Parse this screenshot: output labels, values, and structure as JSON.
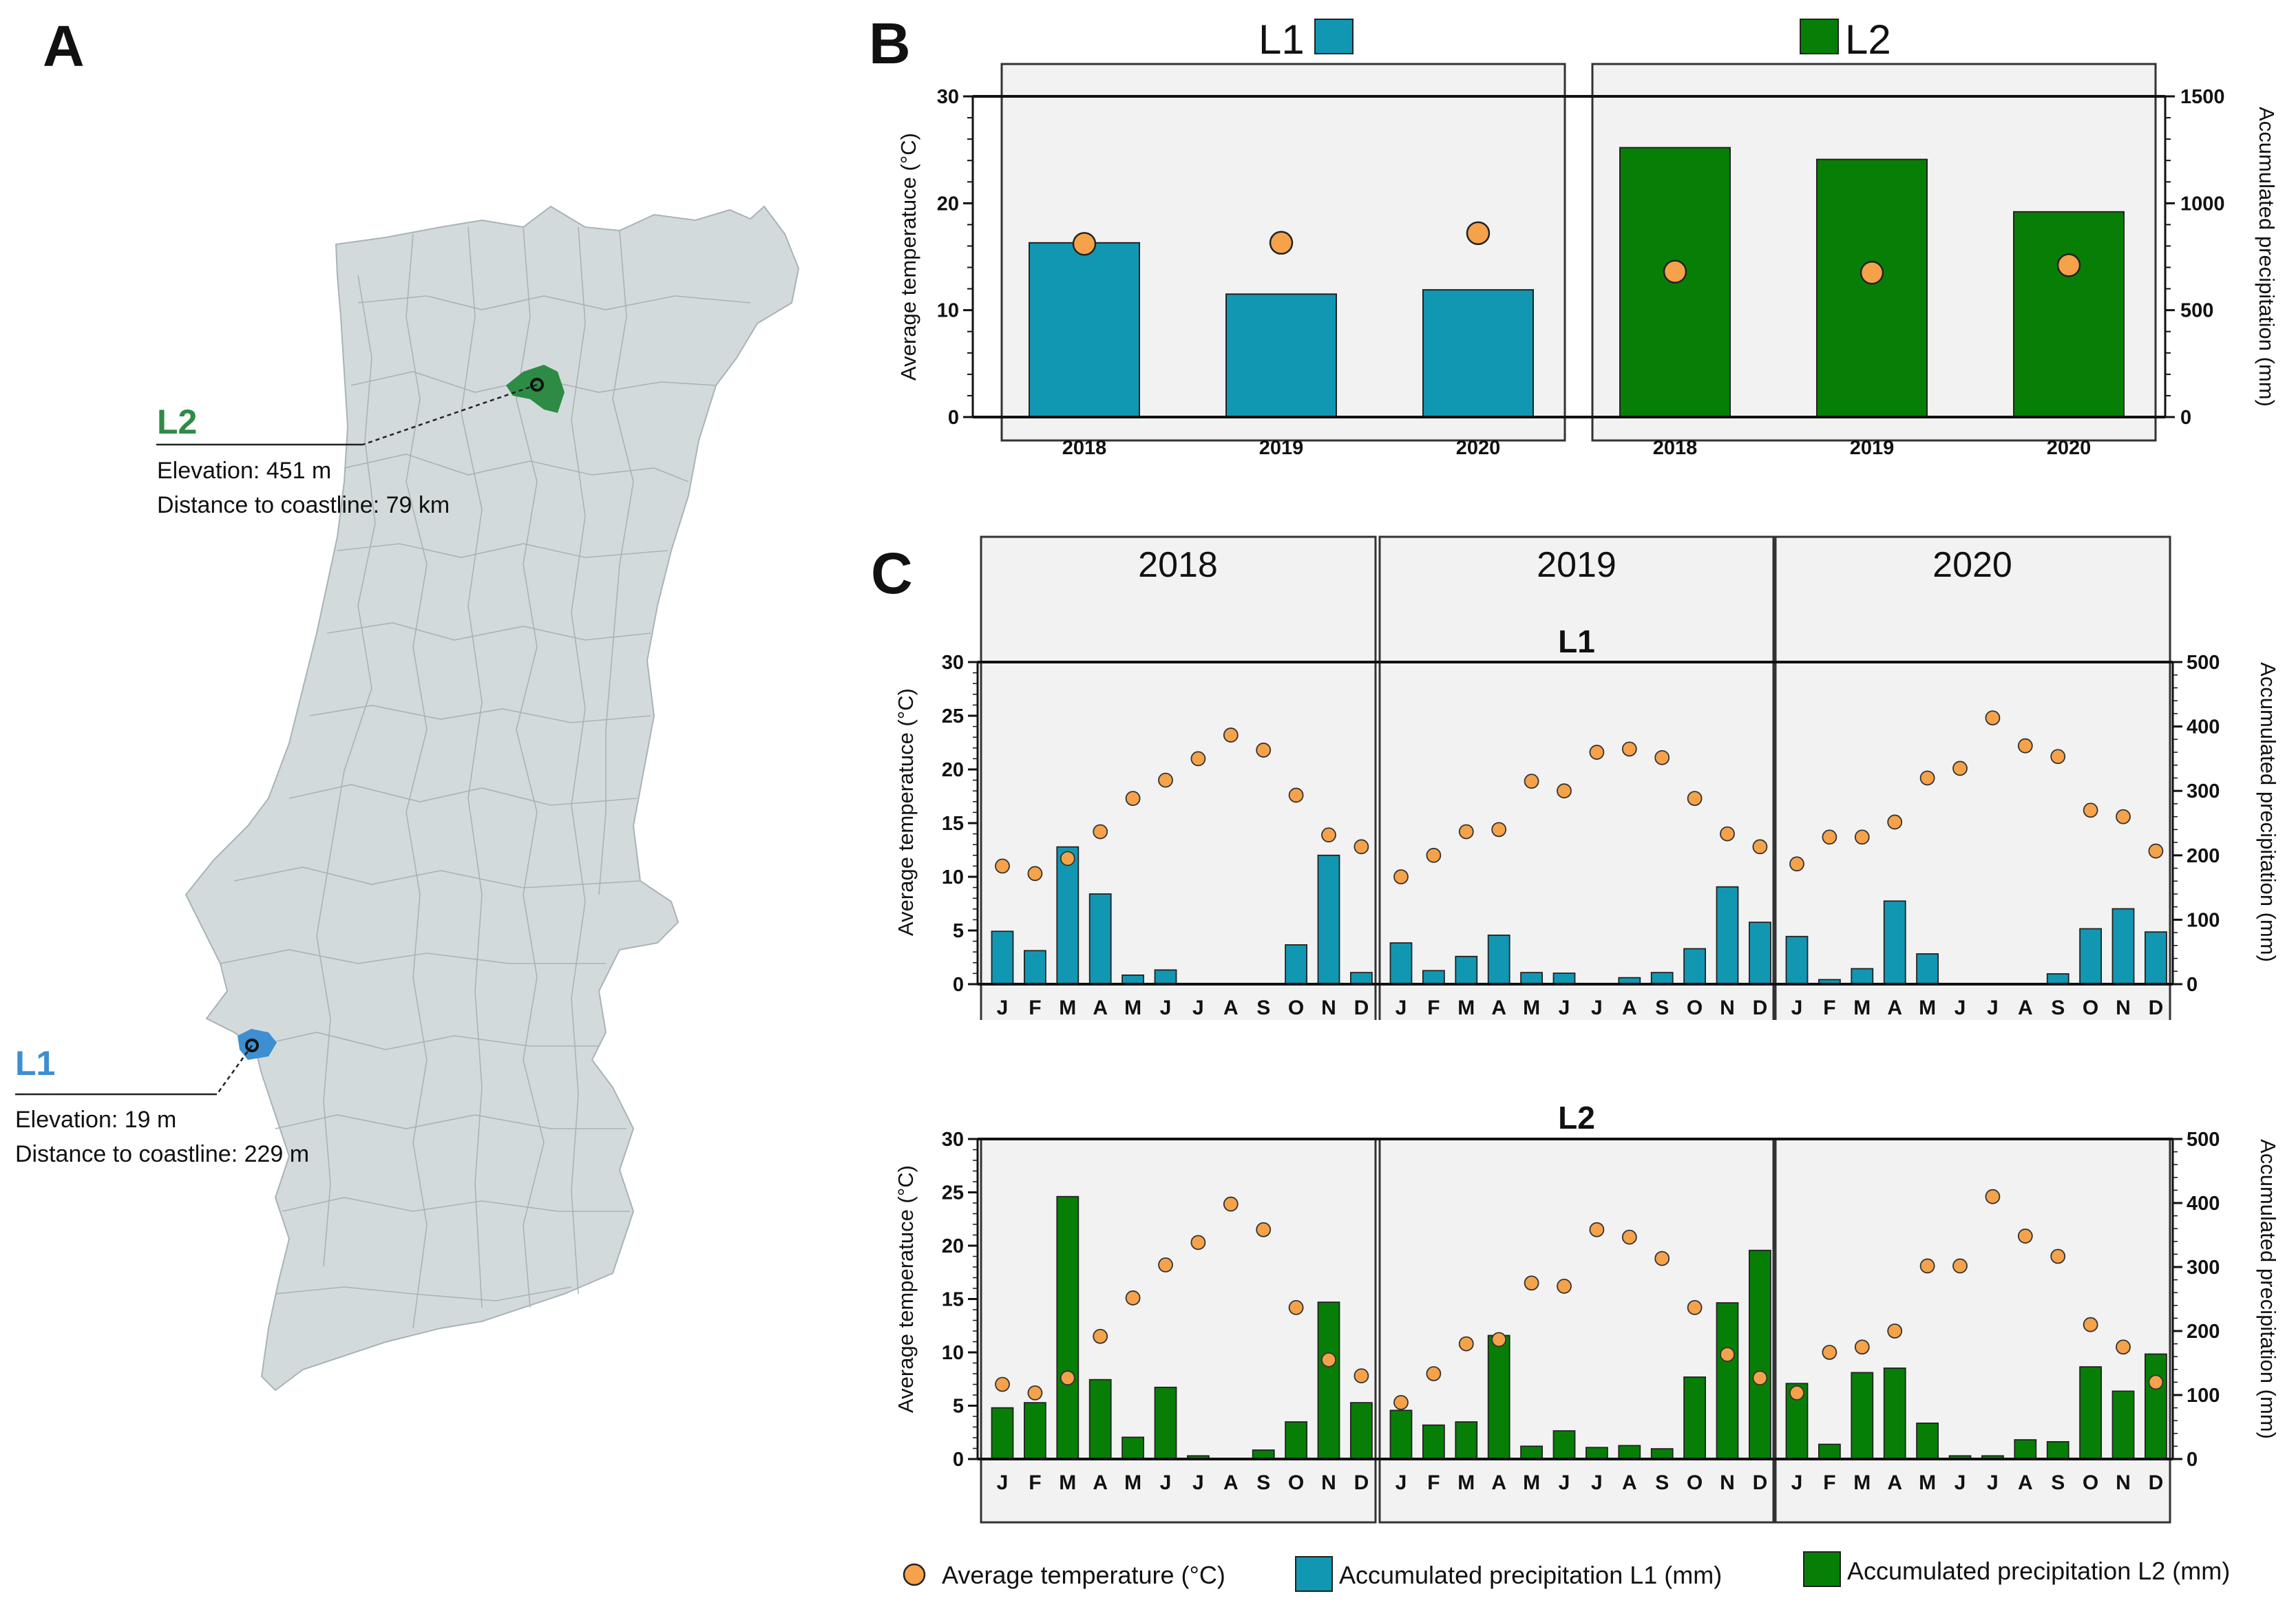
{
  "panel_labels": {
    "a": "A",
    "b": "B",
    "c": "C"
  },
  "colors": {
    "l1": "#1297b3",
    "l2": "#077f07",
    "temp": "#f5a24a",
    "map_fill": "#d3dadc",
    "l1_map": "#3d8fd1",
    "l2_map": "#2e8b45"
  },
  "map": {
    "l1": {
      "name": "L1",
      "elevation": "Elevation: 19 m",
      "distance": "Distance to coastline: 229 m"
    },
    "l2": {
      "name": "L2",
      "elevation": "Elevation: 451 m",
      "distance": "Distance to coastline: 79 km"
    }
  },
  "legend": {
    "temp": "Average temperature (°C)",
    "l1": "Accumulated precipitation L1 (mm)",
    "l2": "Accumulated precipitation L2 (mm)"
  },
  "chart_data": [
    {
      "id": "B",
      "type": "bar",
      "title": "",
      "groups": [
        {
          "name": "L1",
          "categories": [
            "2018",
            "2019",
            "2020"
          ],
          "precipitation_mm": [
            815,
            575,
            595
          ],
          "temperature_c": [
            16.2,
            16.3,
            17.2
          ]
        },
        {
          "name": "L2",
          "categories": [
            "2018",
            "2019",
            "2020"
          ],
          "precipitation_mm": [
            1260,
            1205,
            960
          ],
          "temperature_c": [
            13.6,
            13.5,
            14.2
          ]
        }
      ],
      "ylabel_left": "Average temperatuce (°C)",
      "ylabel_right": "Accumulated precipitation (mm)",
      "ylim_left": [
        0,
        30
      ],
      "ylim_right": [
        0,
        1500
      ],
      "yticks_left": [
        "0",
        "10",
        "20",
        "30"
      ],
      "yticks_right": [
        "0",
        "500",
        "1000",
        "1500"
      ]
    },
    {
      "id": "C",
      "type": "bar",
      "years": [
        "2018",
        "2019",
        "2020"
      ],
      "months": [
        "J",
        "F",
        "M",
        "A",
        "M",
        "J",
        "J",
        "A",
        "S",
        "O",
        "N",
        "D"
      ],
      "ylabel_left": "Average temperatuce (°C)",
      "ylabel_right": "Accumulated precipitation (mm)",
      "ylim_left": [
        0,
        30
      ],
      "ylim_right": [
        0,
        500
      ],
      "yticks_left": [
        "0",
        "5",
        "10",
        "15",
        "20",
        "25",
        "30"
      ],
      "yticks_right": [
        "0",
        "100",
        "200",
        "300",
        "400",
        "500"
      ],
      "rows": [
        {
          "name": "L1",
          "precipitation_mm": [
            [
              82,
              52,
              213,
              140,
              14,
              22,
              0,
              0,
              0,
              61,
              200,
              18
            ],
            [
              64,
              21,
              43,
              76,
              18,
              17,
              0,
              10,
              18,
              55,
              151,
              96
            ],
            [
              74,
              7,
              24,
              129,
              47,
              0,
              0,
              0,
              16,
              86,
              117,
              81
            ]
          ],
          "temperature_c": [
            [
              11.0,
              10.3,
              11.7,
              14.2,
              17.3,
              19.0,
              21.0,
              23.2,
              21.8,
              17.6,
              13.9,
              12.8
            ],
            [
              10.0,
              12.0,
              14.2,
              14.4,
              18.9,
              18.0,
              21.6,
              21.9,
              21.1,
              17.3,
              14.0,
              12.8
            ],
            [
              11.2,
              13.7,
              13.7,
              15.1,
              19.2,
              20.1,
              24.8,
              22.2,
              21.2,
              16.2,
              15.6,
              12.4
            ]
          ]
        },
        {
          "name": "L2",
          "precipitation_mm": [
            [
              80,
              88,
              410,
              124,
              34,
              112,
              5,
              0,
              14,
              58,
              245,
              88
            ],
            [
              76,
              53,
              58,
              193,
              20,
              44,
              18,
              21,
              16,
              128,
              244,
              326
            ],
            [
              118,
              23,
              135,
              142,
              56,
              5,
              5,
              30,
              27,
              144,
              106,
              164
            ]
          ],
          "temperature_c": [
            [
              7.0,
              6.2,
              7.6,
              11.5,
              15.1,
              18.2,
              20.3,
              23.9,
              21.5,
              14.2,
              9.3,
              7.8
            ],
            [
              5.3,
              8.0,
              10.8,
              11.2,
              16.5,
              16.2,
              21.5,
              20.8,
              18.8,
              14.2,
              9.8,
              7.6
            ],
            [
              6.2,
              10.0,
              10.5,
              12.0,
              18.1,
              18.1,
              24.6,
              20.9,
              19.0,
              12.6,
              10.5,
              7.2
            ]
          ]
        }
      ]
    }
  ]
}
